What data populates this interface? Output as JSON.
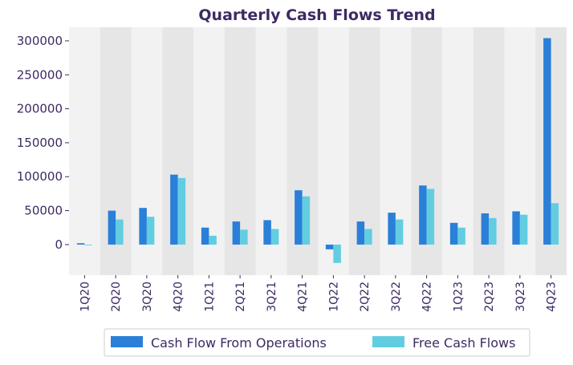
{
  "chart_data": {
    "type": "bar",
    "title": "Quarterly Cash Flows Trend",
    "xlabel": "",
    "ylabel": "",
    "categories": [
      "1Q20",
      "2Q20",
      "3Q20",
      "4Q20",
      "1Q21",
      "2Q21",
      "3Q21",
      "4Q21",
      "1Q22",
      "2Q22",
      "3Q22",
      "4Q22",
      "1Q23",
      "2Q23",
      "3Q23",
      "4Q23"
    ],
    "series": [
      {
        "name": "Cash Flow From Operations",
        "color": "#2a7fd8",
        "values": [
          2000,
          50000,
          54000,
          103000,
          25000,
          34000,
          36000,
          80000,
          -7000,
          34000,
          47000,
          87000,
          32000,
          46000,
          49000,
          304000
        ]
      },
      {
        "name": "Free Cash Flows",
        "color": "#62cde0",
        "values": [
          -1000,
          37000,
          41000,
          98000,
          13000,
          22000,
          23000,
          71000,
          -27000,
          23000,
          37000,
          82000,
          25000,
          39000,
          44000,
          61000
        ]
      }
    ],
    "ylim": [
      -45000,
      320000
    ],
    "yticks": [
      0,
      50000,
      100000,
      150000,
      200000,
      250000,
      300000
    ],
    "ytick_labels": [
      "0",
      "50000",
      "100000",
      "150000",
      "200000",
      "250000",
      "300000"
    ],
    "background_bands": [
      "#f2f2f2",
      "#e6e6e6"
    ],
    "grid": false,
    "legend_position": "bottom-center"
  }
}
